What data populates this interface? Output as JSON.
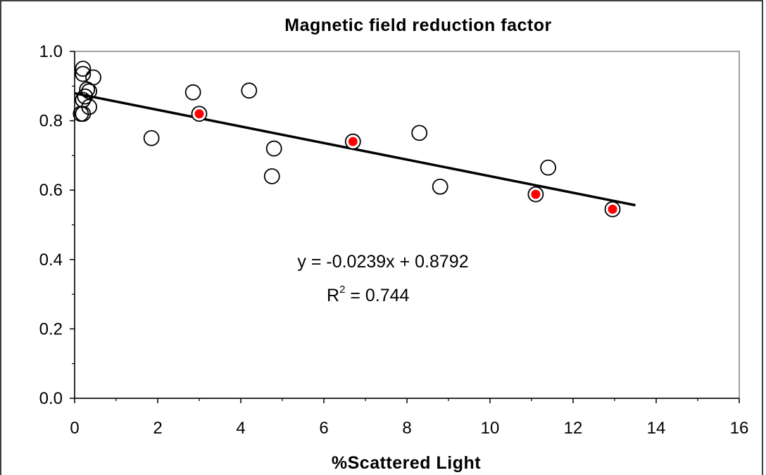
{
  "chart_data": {
    "type": "scatter",
    "title": "Magnetic field reduction factor",
    "xlabel": "%Scattered Light",
    "ylabel": "",
    "xlim": [
      0,
      16
    ],
    "ylim": [
      0.0,
      1.0
    ],
    "x_ticks": [
      "0",
      "2",
      "4",
      "6",
      "8",
      "10",
      "12",
      "14",
      "16"
    ],
    "y_ticks": [
      "0.0",
      "0.2",
      "0.4",
      "0.6",
      "0.8",
      "1.0"
    ],
    "x_tick_values": [
      0,
      2,
      4,
      6,
      8,
      10,
      12,
      14,
      16
    ],
    "y_tick_values": [
      0.0,
      0.2,
      0.4,
      0.6,
      0.8,
      1.0
    ],
    "grid": false,
    "series": [
      {
        "marker": "open-circle",
        "color": "#000000",
        "points": [
          {
            "x": 0.2,
            "y": 0.95
          },
          {
            "x": 0.2,
            "y": 0.935
          },
          {
            "x": 0.45,
            "y": 0.925
          },
          {
            "x": 0.3,
            "y": 0.89
          },
          {
            "x": 0.35,
            "y": 0.885
          },
          {
            "x": 0.25,
            "y": 0.87
          },
          {
            "x": 0.2,
            "y": 0.86
          },
          {
            "x": 0.35,
            "y": 0.84
          },
          {
            "x": 0.15,
            "y": 0.82
          },
          {
            "x": 0.2,
            "y": 0.82
          },
          {
            "x": 1.85,
            "y": 0.75
          },
          {
            "x": 2.85,
            "y": 0.882
          },
          {
            "x": 4.2,
            "y": 0.887
          },
          {
            "x": 4.8,
            "y": 0.72
          },
          {
            "x": 4.75,
            "y": 0.64
          },
          {
            "x": 8.3,
            "y": 0.765
          },
          {
            "x": 8.8,
            "y": 0.61
          },
          {
            "x": 11.4,
            "y": 0.665
          }
        ]
      },
      {
        "marker": "red-filled-circle",
        "color": "#ff0000",
        "points": [
          {
            "x": 3.0,
            "y": 0.82
          },
          {
            "x": 6.7,
            "y": 0.74
          },
          {
            "x": 11.1,
            "y": 0.588
          },
          {
            "x": 12.95,
            "y": 0.545
          }
        ]
      }
    ],
    "trendline": {
      "slope": -0.0239,
      "intercept": 0.8792,
      "x_range": [
        0,
        13.5
      ],
      "equation": "y = -0.0239x + 0.8792",
      "r2_label": "R",
      "r2_exp": "2",
      "r2_value": " = 0.744"
    }
  }
}
